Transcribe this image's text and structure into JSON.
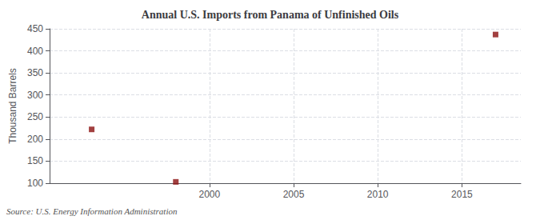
{
  "chart_data": {
    "type": "scatter",
    "title": "Annual U.S. Imports from Panama of Unfinished Oils",
    "ylabel": "Thousand Barrels",
    "source": "Source: U.S. Energy Information Administration",
    "x": [
      1993,
      1998,
      2017
    ],
    "values": [
      222,
      103,
      437
    ],
    "color": "#8b1010",
    "marker": "square",
    "xlim": [
      1990.5,
      2018.5
    ],
    "ylim": [
      100,
      450
    ],
    "xticks": [
      2000,
      2005,
      2010,
      2015
    ],
    "yticks": [
      100,
      150,
      200,
      250,
      300,
      350,
      400,
      450
    ],
    "grid": true
  }
}
